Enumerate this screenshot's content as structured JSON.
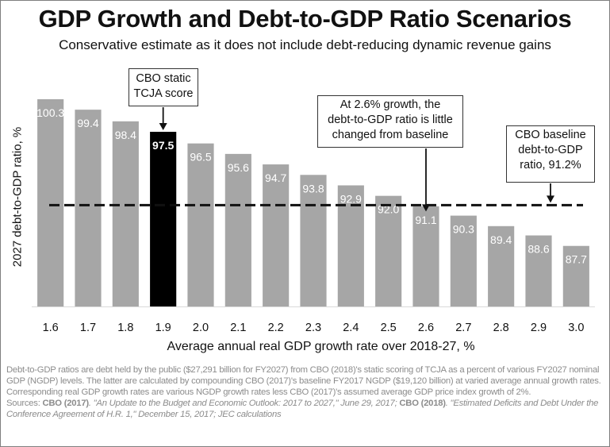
{
  "title": "GDP Growth and Debt-to-GDP Ratio Scenarios",
  "subtitle": "Conservative estimate as it does not include debt-reducing dynamic revenue gains",
  "colors": {
    "bar": "#a6a6a6",
    "highlight": "#000000",
    "label_light": "#ffffff",
    "baseline": "#111111"
  },
  "chart_data": {
    "type": "bar",
    "categories": [
      "1.6",
      "1.7",
      "1.8",
      "1.9",
      "2.0",
      "2.1",
      "2.2",
      "2.3",
      "2.4",
      "2.5",
      "2.6",
      "2.7",
      "2.8",
      "2.9",
      "3.0"
    ],
    "values": [
      100.3,
      99.4,
      98.4,
      97.5,
      96.5,
      95.6,
      94.7,
      93.8,
      92.9,
      92.0,
      91.1,
      90.3,
      89.4,
      88.6,
      87.7
    ],
    "value_labels": [
      "100.3",
      "99.4",
      "98.4",
      "97.5",
      "96.5",
      "95.6",
      "94.7",
      "93.8",
      "92.9",
      "92.0",
      "91.1",
      "90.3",
      "89.4",
      "88.6",
      "87.7"
    ],
    "highlight_category": "1.9",
    "baseline": 91.2,
    "xlabel": "Average annual real GDP growth rate over 2018-27, %",
    "ylabel": "2027 debt-to-GDP ratio, %",
    "ylim": [
      82.5,
      102
    ],
    "grid": false,
    "annotations": {
      "static": [
        "CBO static",
        "TCJA score"
      ],
      "mid": [
        "At 2.6% growth, the",
        "debt-to-GDP ratio is little",
        "changed from baseline"
      ],
      "base": [
        "CBO baseline",
        "debt-to-GDP",
        "ratio, 91.2%"
      ]
    }
  },
  "notes": {
    "line1": "Debt-to-GDP ratios are debt held by the public ($27,291 billion for FY2027) from CBO (2018)'s static scoring of TCJA as a percent of various FY2027 nominal GDP (NGDP) levels. The latter are calculated by compounding CBO (2017)'s baseline FY2017 NGDP ($19,120 billion) at varied average annual growth rates. Corresponding real GDP growth rates are various NGDP growth rates less CBO (2017)'s assumed average GDP price index growth of 2%.",
    "sources_prefix": "Sources: ",
    "src1_name": "CBO (2017)",
    "src1_title": ". \"An Update to the Budget and Economic Outlook: 2017 to 2027,\" June 29, 2017; ",
    "src2_name": "CBO (2018)",
    "src2_title": ". \"Estimated Deficits and Debt Under the Conference Agreement of H.R. 1,\" December 15, 2017; JEC calculations"
  }
}
